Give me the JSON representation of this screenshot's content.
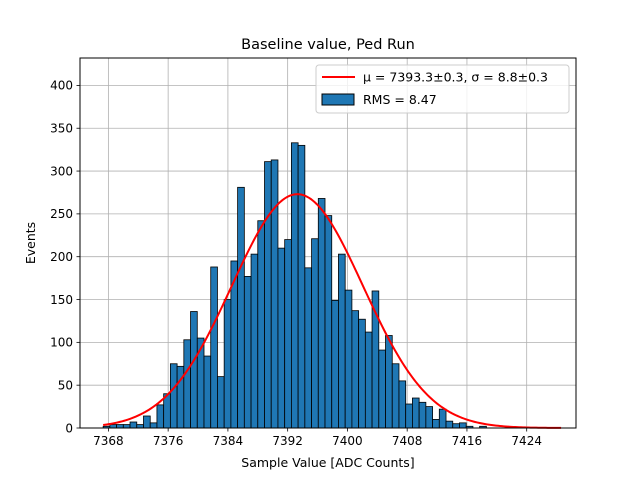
{
  "chart_data": {
    "type": "bar",
    "title": "Baseline value, Ped Run",
    "xlabel": "Sample Value [ADC Counts]",
    "ylabel": "Events",
    "xlim": [
      7364.2,
      7430.6
    ],
    "ylim": [
      0,
      432
    ],
    "xticks": [
      7368,
      7376,
      7384,
      7392,
      7400,
      7408,
      7416,
      7424
    ],
    "yticks": [
      0,
      50,
      100,
      150,
      200,
      250,
      300,
      350,
      400
    ],
    "grid": true,
    "legend_position": "upper right",
    "bin_width": 0.9,
    "bin_start": 7367.3,
    "histogram": {
      "name": "RMS = 8.47",
      "color": "#1f77b4",
      "values": [
        2,
        4,
        4,
        4,
        7,
        4,
        14,
        6,
        27,
        40,
        75,
        72,
        103,
        136,
        105,
        84,
        188,
        60,
        150,
        195,
        281,
        177,
        203,
        242,
        311,
        313,
        210,
        220,
        333,
        330,
        187,
        221,
        268,
        248,
        149,
        203,
        161,
        137,
        127,
        112,
        160,
        91,
        108,
        75,
        55,
        28,
        35,
        30,
        25,
        10,
        22,
        8,
        5,
        6,
        2,
        0,
        2,
        0,
        0,
        0
      ]
    },
    "fit": {
      "name": "μ = 7393.3±0.3, σ = 8.8±0.3",
      "mu": 7393.3,
      "sigma": 8.8,
      "amplitude": 273,
      "x_range": [
        7367.3,
        7428.6
      ],
      "color": "#ff0000"
    },
    "legend": [
      {
        "label": "μ = 7393.3±0.3, σ = 8.8±0.3",
        "kind": "line",
        "color": "#ff0000"
      },
      {
        "label": "RMS = 8.47",
        "kind": "patch",
        "color": "#1f77b4"
      }
    ]
  }
}
